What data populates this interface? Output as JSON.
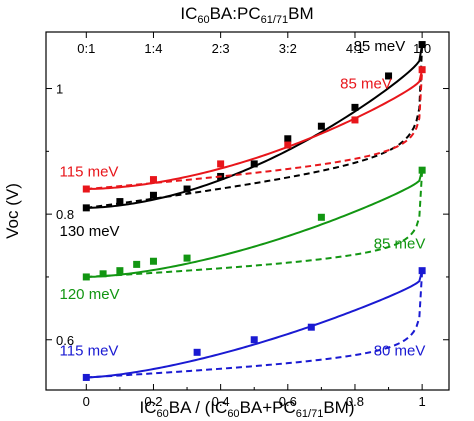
{
  "chart_data": {
    "type": "scatter",
    "xlabel": "IC60BA / (IC60BA+PC61/71BM)",
    "ylabel": "Voc (V)",
    "top_xlabel": "IC60BA:PC61/71BM",
    "xlim": [
      -0.12,
      1.08
    ],
    "ylim": [
      0.52,
      1.09
    ],
    "x_ticks": [
      "0",
      "0.2",
      "0.4",
      "0.6",
      "0.8",
      "1"
    ],
    "x_tick_values": [
      0,
      0.2,
      0.4,
      0.6,
      0.8,
      1
    ],
    "y_ticks": [
      "0.6",
      "0.8",
      "1"
    ],
    "y_tick_values": [
      0.6,
      0.8,
      1.0
    ],
    "top_ticks": [
      "0:1",
      "1:4",
      "2:3",
      "3:2",
      "4:1",
      "1:0"
    ],
    "top_tick_values": [
      0,
      0.2,
      0.4,
      0.6,
      0.8,
      1
    ],
    "series": [
      {
        "color": "#000000",
        "x": [
          0,
          0.1,
          0.2,
          0.3,
          0.4,
          0.5,
          0.6,
          0.7,
          0.8,
          0.9,
          1.0
        ],
        "y": [
          0.81,
          0.82,
          0.83,
          0.84,
          0.86,
          0.88,
          0.92,
          0.94,
          0.97,
          1.02,
          1.07
        ],
        "fit_delta_meV": 85,
        "dashed_delta_meV": 130,
        "annotations": [
          {
            "text": "85 meV",
            "x": 0.92,
            "y": 1.06
          },
          {
            "text": "130 meV",
            "x": -0.05,
            "y": 0.765
          }
        ]
      },
      {
        "color": "#e8161b",
        "x": [
          0,
          0.2,
          0.4,
          0.6,
          0.8,
          1.0
        ],
        "y": [
          0.84,
          0.855,
          0.88,
          0.91,
          0.95,
          1.03
        ],
        "fit_delta_meV": 85,
        "dashed_delta_meV": 115,
        "annotations": [
          {
            "text": "85 meV",
            "x": 0.88,
            "y": 1.0
          },
          {
            "text": "115 meV",
            "x": -0.05,
            "y": 0.86
          }
        ]
      },
      {
        "color": "#129612",
        "x": [
          0,
          0.05,
          0.1,
          0.15,
          0.2,
          0.3,
          0.7,
          1.0
        ],
        "y": [
          0.7,
          0.705,
          0.71,
          0.72,
          0.725,
          0.73,
          0.795,
          0.87
        ],
        "fit_delta_meV": 120,
        "dashed_delta_meV": 85,
        "annotations": [
          {
            "text": "85 meV",
            "x": 0.98,
            "y": 0.745
          },
          {
            "text": "120 meV",
            "x": -0.05,
            "y": 0.665
          }
        ]
      },
      {
        "color": "#1a1ad2",
        "x": [
          0,
          0.33,
          0.5,
          0.67,
          1.0
        ],
        "y": [
          0.54,
          0.58,
          0.6,
          0.62,
          0.71
        ],
        "fit_delta_meV": 115,
        "dashed_delta_meV": 80,
        "annotations": [
          {
            "text": "115 meV",
            "x": -0.05,
            "y": 0.575
          },
          {
            "text": "80 meV",
            "x": 0.98,
            "y": 0.575
          }
        ]
      }
    ]
  }
}
